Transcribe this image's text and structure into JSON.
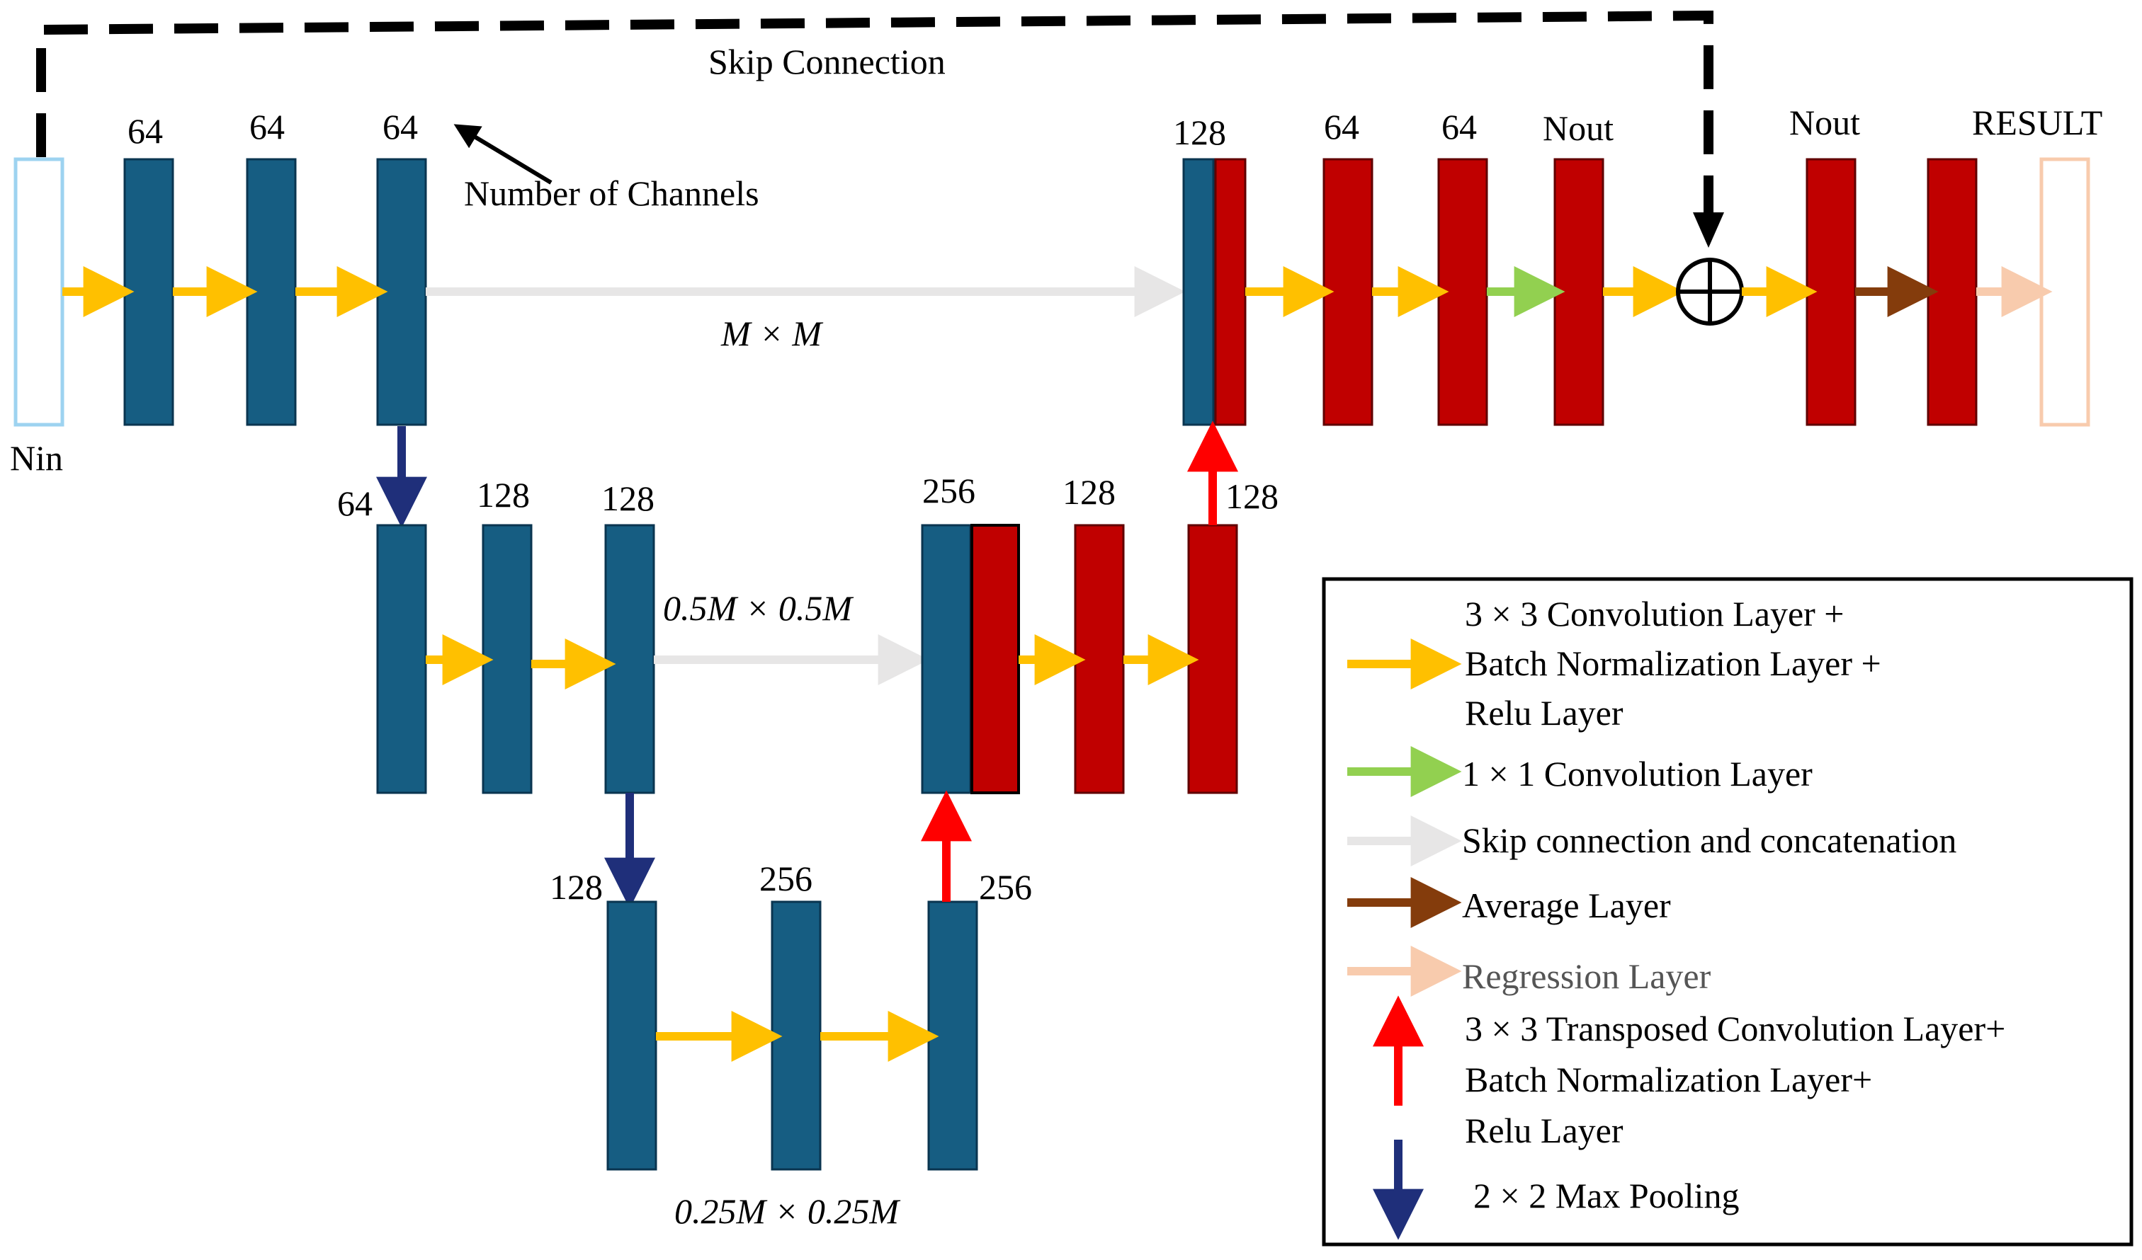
{
  "title_skip": "Skip Connection",
  "annotation": "Number of Channels",
  "input_label": "Nin",
  "result_label": "RESULT",
  "colors": {
    "encoder": "#165d82",
    "decoder": "#c00000",
    "conv": "#ffc000",
    "conv1x1": "#92d050",
    "skip": "#e7e6e6",
    "average": "#843c0c",
    "regression": "#f8cbad",
    "transposed": "#ff0000",
    "maxpool": "#1f2f7a",
    "input_box": "#9dd3f0"
  },
  "channels": {
    "e1_1": "64",
    "e1_2": "64",
    "e1_3": "64",
    "d1_concat": "128",
    "d1_2": "64",
    "d1_3": "64",
    "d1_out": "Nout",
    "d1_sum": "Nout",
    "e2_pool": "64",
    "e2_1": "128",
    "e2_2": "128",
    "d2_concat": "256",
    "d2_2": "128",
    "d2_up": "128",
    "e3_pool": "128",
    "e3_1": "256",
    "e3_up": "256"
  },
  "sizes": {
    "level1": "M × M",
    "level2": "0.5M × 0.5M",
    "level3": "0.25M × 0.25M"
  },
  "legend": {
    "conv_line1": "3 × 3 Convolution Layer +",
    "conv_line2": "Batch Normalization Layer +",
    "conv_line3": "Relu Layer",
    "conv1x1": "1 × 1 Convolution Layer",
    "skip": "Skip connection and concatenation",
    "average": "Average Layer",
    "regression": "Regression Layer",
    "tconv_line1": "3 × 3 Transposed Convolution Layer+",
    "tconv_line2": "Batch Normalization Layer+",
    "tconv_line3": "Relu Layer",
    "maxpool": "2 × 2 Max Pooling"
  }
}
